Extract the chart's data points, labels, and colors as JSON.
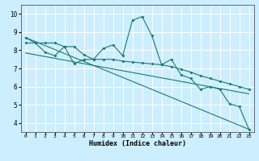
{
  "xlabel": "Humidex (Indice chaleur)",
  "bg_color": "#cceeff",
  "grid_color": "#ffffff",
  "line_color": "#1a7a6e",
  "xlim": [
    -0.5,
    23.5
  ],
  "ylim": [
    3.5,
    10.5
  ],
  "xticks": [
    0,
    1,
    2,
    3,
    4,
    5,
    6,
    7,
    8,
    9,
    10,
    11,
    12,
    13,
    14,
    15,
    16,
    17,
    18,
    19,
    20,
    21,
    22,
    23
  ],
  "yticks": [
    4,
    5,
    6,
    7,
    8,
    9,
    10
  ],
  "curve1_x": [
    0,
    1,
    2,
    3,
    4,
    5,
    6,
    7,
    8,
    9,
    10,
    11,
    12,
    13,
    14,
    15,
    16,
    17,
    18,
    19,
    20,
    21,
    22,
    23
  ],
  "curve1_y": [
    8.7,
    8.4,
    7.9,
    7.7,
    8.2,
    7.25,
    7.5,
    7.5,
    8.1,
    8.3,
    7.7,
    9.65,
    9.85,
    8.8,
    7.2,
    7.5,
    6.65,
    6.45,
    5.85,
    6.0,
    5.85,
    5.05,
    4.9,
    3.65
  ],
  "curve2_x": [
    0,
    1,
    2,
    3,
    4,
    5,
    6,
    7,
    8,
    9,
    10,
    11,
    12,
    13,
    14,
    15,
    16,
    17,
    18,
    19,
    20,
    21,
    22,
    23
  ],
  "curve2_y": [
    8.4,
    8.4,
    8.4,
    8.4,
    8.2,
    8.2,
    7.75,
    7.5,
    7.5,
    7.5,
    7.4,
    7.35,
    7.3,
    7.25,
    7.2,
    7.1,
    6.95,
    6.8,
    6.6,
    6.45,
    6.3,
    6.15,
    6.0,
    5.85
  ],
  "line1_x": [
    0,
    23
  ],
  "line1_y": [
    8.7,
    3.65
  ],
  "line2_x": [
    0,
    23
  ],
  "line2_y": [
    7.85,
    5.6
  ]
}
